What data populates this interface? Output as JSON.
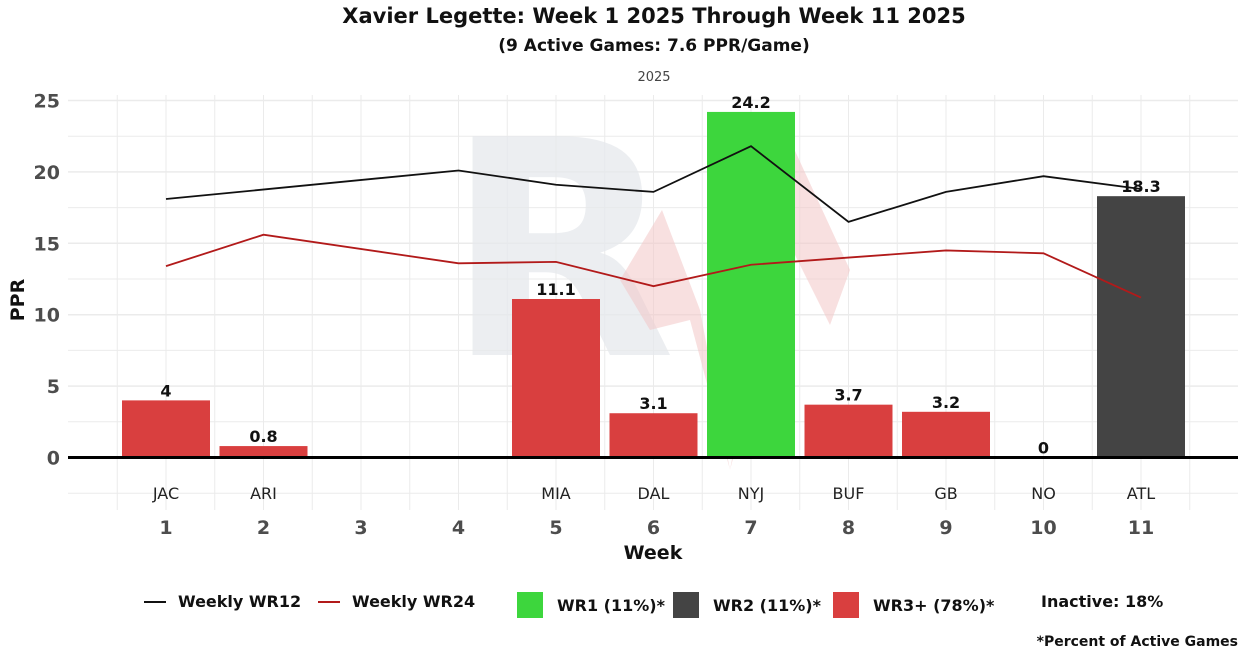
{
  "header": {
    "title": "Xavier Legette: Week 1 2025 Through Week 11 2025",
    "subtitle": "(9 Active Games: 7.6 PPR/Game)",
    "facet_label": "2025"
  },
  "legend": {
    "wr12": "Weekly WR12",
    "wr24": "Weekly WR24",
    "wr1": "WR1 (11%)*",
    "wr2": "WR2 (11%)*",
    "wr3": "WR3+ (78%)*",
    "inactive": "Inactive: 18%"
  },
  "footnote": "*Percent of Active Games",
  "colors": {
    "wr1": "#3dd63d",
    "wr2": "#444444",
    "wr3": "#d93f3f",
    "wr12_line": "#111111",
    "wr24_line": "#b21a1a",
    "grid": "#ebebeb"
  },
  "chart_data": {
    "type": "bar",
    "title": "Xavier Legette: Week 1 2025 Through Week 11 2025",
    "subtitle": "(9 Active Games: 7.6 PPR/Game)",
    "facet": "2025",
    "xlabel": "Week",
    "ylabel": "PPR",
    "ylim": [
      -3.5,
      25.5
    ],
    "yticks": [
      0,
      5,
      10,
      15,
      20,
      25
    ],
    "grid": true,
    "legend_position": "bottom",
    "categories": [
      "1",
      "2",
      "3",
      "4",
      "5",
      "6",
      "7",
      "8",
      "9",
      "10",
      "11"
    ],
    "opponents": [
      "JAC",
      "ARI",
      "",
      "",
      "MIA",
      "DAL",
      "NYJ",
      "BUF",
      "GB",
      "NO",
      "ATL"
    ],
    "bars": [
      {
        "week": 1,
        "opp": "JAC",
        "value": 4,
        "label": "4",
        "tier": "WR3+"
      },
      {
        "week": 2,
        "opp": "ARI",
        "value": 0.8,
        "label": "0.8",
        "tier": "WR3+"
      },
      {
        "week": 5,
        "opp": "MIA",
        "value": 11.1,
        "label": "11.1",
        "tier": "WR3+"
      },
      {
        "week": 6,
        "opp": "DAL",
        "value": 3.1,
        "label": "3.1",
        "tier": "WR3+"
      },
      {
        "week": 7,
        "opp": "NYJ",
        "value": 24.2,
        "label": "24.2",
        "tier": "WR1"
      },
      {
        "week": 8,
        "opp": "BUF",
        "value": 3.7,
        "label": "3.7",
        "tier": "WR3+"
      },
      {
        "week": 9,
        "opp": "GB",
        "value": 3.2,
        "label": "3.2",
        "tier": "WR3+"
      },
      {
        "week": 10,
        "opp": "NO",
        "value": 0,
        "label": "0",
        "tier": "WR3+"
      },
      {
        "week": 11,
        "opp": "ATL",
        "value": 18.3,
        "label": "18.3",
        "tier": "WR2"
      }
    ],
    "series": [
      {
        "name": "Weekly WR12",
        "weeks": [
          1,
          4,
          5,
          6,
          7,
          8,
          9,
          10,
          11
        ],
        "values": [
          18.1,
          20.1,
          19.1,
          18.6,
          21.8,
          16.5,
          18.6,
          19.7,
          18.8
        ]
      },
      {
        "name": "Weekly WR24",
        "weeks": [
          1,
          2,
          4,
          5,
          6,
          7,
          8,
          9,
          10,
          11
        ],
        "values": [
          13.4,
          15.6,
          13.6,
          13.7,
          12.0,
          13.5,
          14.0,
          14.5,
          14.3,
          11.2
        ]
      }
    ]
  }
}
